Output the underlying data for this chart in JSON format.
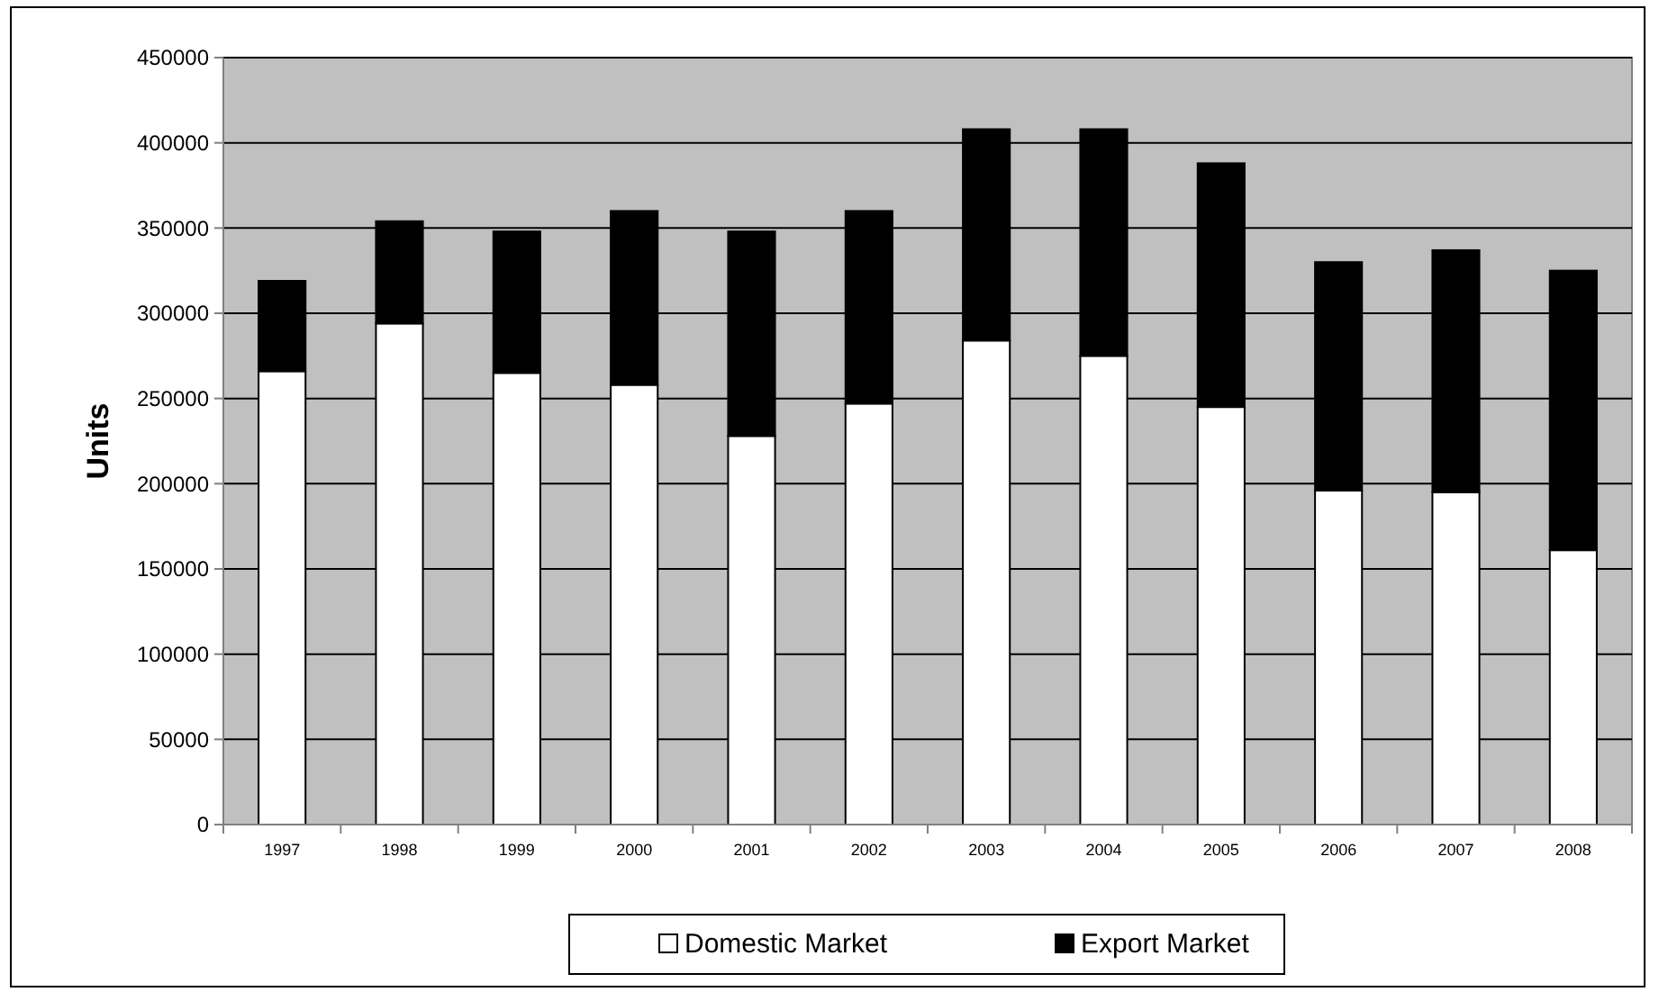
{
  "chart_data": {
    "type": "bar",
    "stacked": true,
    "ylabel": "Units",
    "categories": [
      "1997",
      "1998",
      "1999",
      "2000",
      "2001",
      "2002",
      "2003",
      "2004",
      "2005",
      "2006",
      "2007",
      "2008"
    ],
    "series": [
      {
        "name": "Domestic Market",
        "color": "#ffffff",
        "values": [
          266000,
          294000,
          265000,
          258000,
          228000,
          247000,
          284000,
          275000,
          245000,
          196000,
          195000,
          161000
        ]
      },
      {
        "name": "Export Market",
        "color": "#000000",
        "values": [
          53000,
          60000,
          83000,
          102000,
          120000,
          113000,
          124000,
          133000,
          143000,
          134000,
          142000,
          164000
        ]
      }
    ],
    "ylim": [
      0,
      450000
    ],
    "yticks": [
      0,
      50000,
      100000,
      150000,
      200000,
      250000,
      300000,
      350000,
      400000,
      450000
    ],
    "grid": "y",
    "legend": "bottom"
  }
}
